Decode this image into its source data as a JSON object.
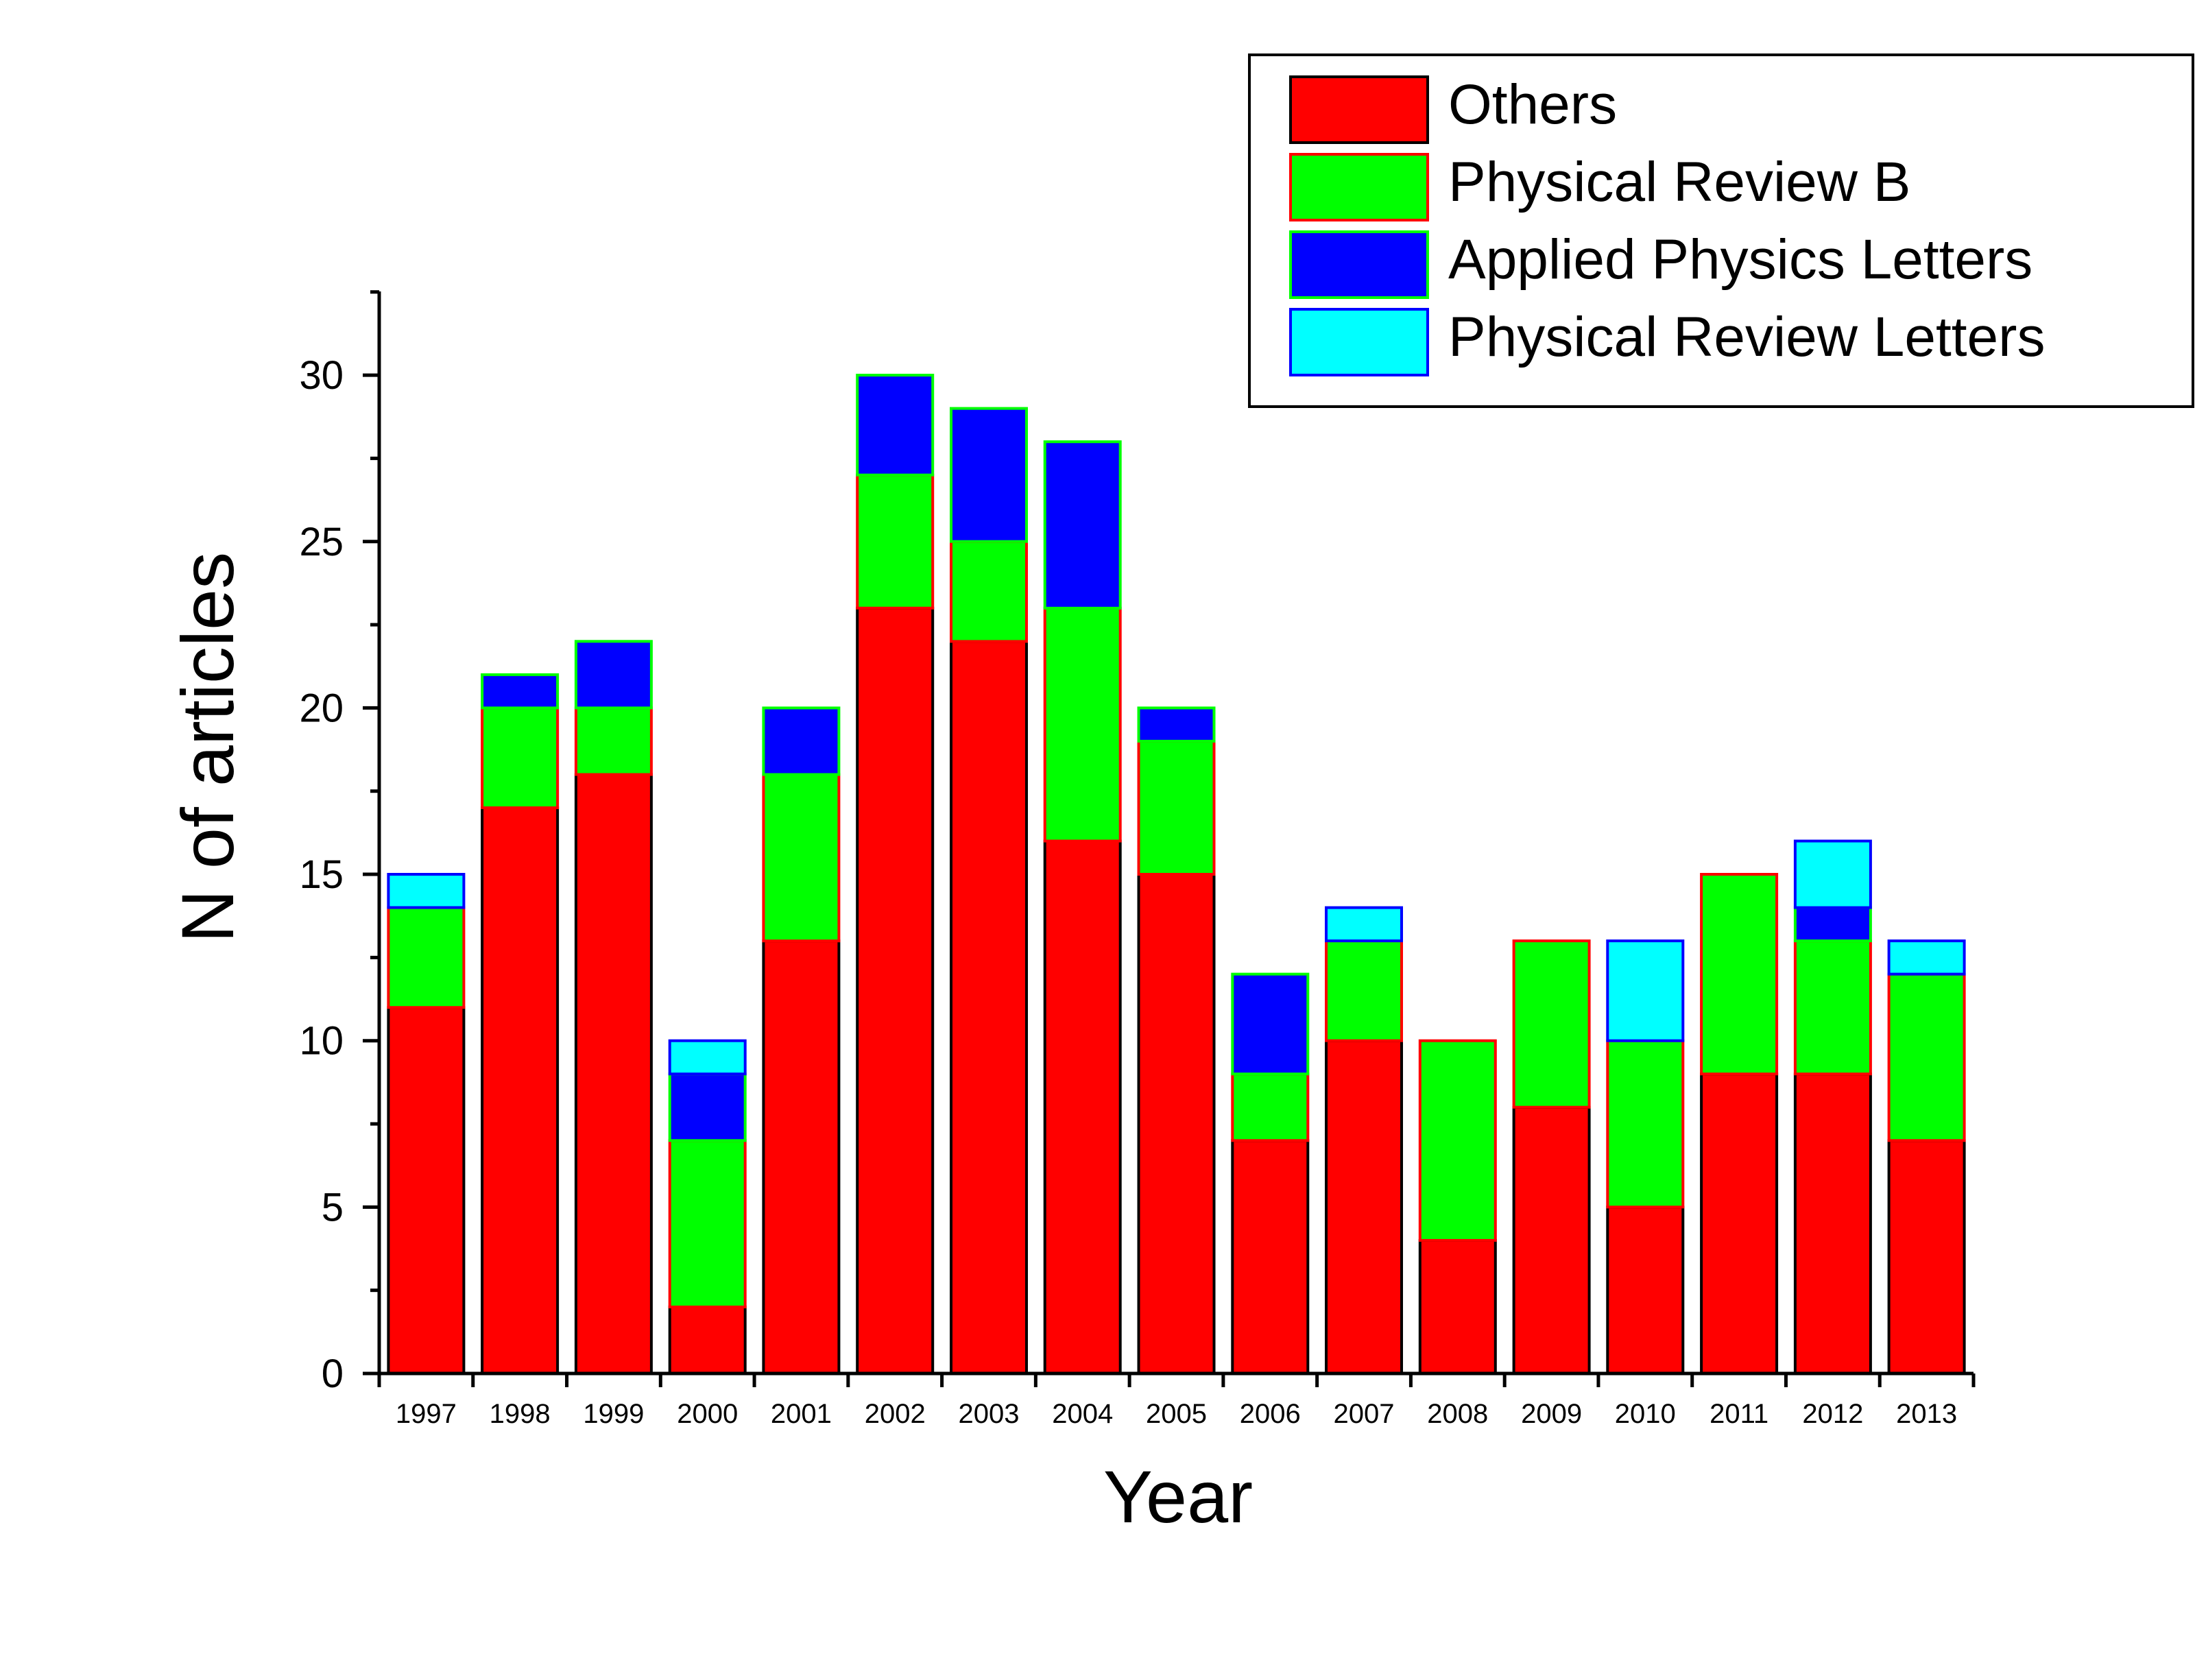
{
  "chart_data": {
    "type": "bar",
    "stacked": true,
    "title": "",
    "xlabel": "Year",
    "ylabel": "N of articles",
    "ylim": [
      0,
      32.5
    ],
    "yticks": [
      0,
      5,
      10,
      15,
      20,
      25,
      30
    ],
    "yminor_step": 2.5,
    "grid": false,
    "legend_position": "top-right",
    "categories": [
      "1997",
      "1998",
      "1999",
      "2000",
      "2001",
      "2002",
      "2003",
      "2004",
      "2005",
      "2006",
      "2007",
      "2008",
      "2009",
      "2010",
      "2011",
      "2012",
      "2013"
    ],
    "series": [
      {
        "name": "Others",
        "color": "#ff0000",
        "edge_color": "#000000",
        "values": [
          11,
          17,
          18,
          2,
          13,
          23,
          22,
          16,
          15,
          7,
          10,
          4,
          8,
          5,
          9,
          9,
          7
        ]
      },
      {
        "name": "Physical Review B",
        "color": "#00ff00",
        "edge_color": "#ff0000",
        "values": [
          3,
          3,
          2,
          5,
          5,
          4,
          3,
          7,
          4,
          2,
          3,
          6,
          5,
          5,
          6,
          4,
          5
        ]
      },
      {
        "name": "Applied Physics Letters",
        "color": "#0000ff",
        "edge_color": "#00ff00",
        "values": [
          0,
          1,
          2,
          2,
          2,
          3,
          4,
          5,
          1,
          3,
          0,
          0,
          0,
          0,
          0,
          1,
          0
        ]
      },
      {
        "name": "Physical Review Letters",
        "color": "#00ffff",
        "edge_color": "#0000ff",
        "values": [
          1,
          0,
          0,
          1,
          0,
          0,
          0,
          0,
          0,
          0,
          1,
          0,
          0,
          3,
          0,
          2,
          1
        ]
      }
    ]
  }
}
